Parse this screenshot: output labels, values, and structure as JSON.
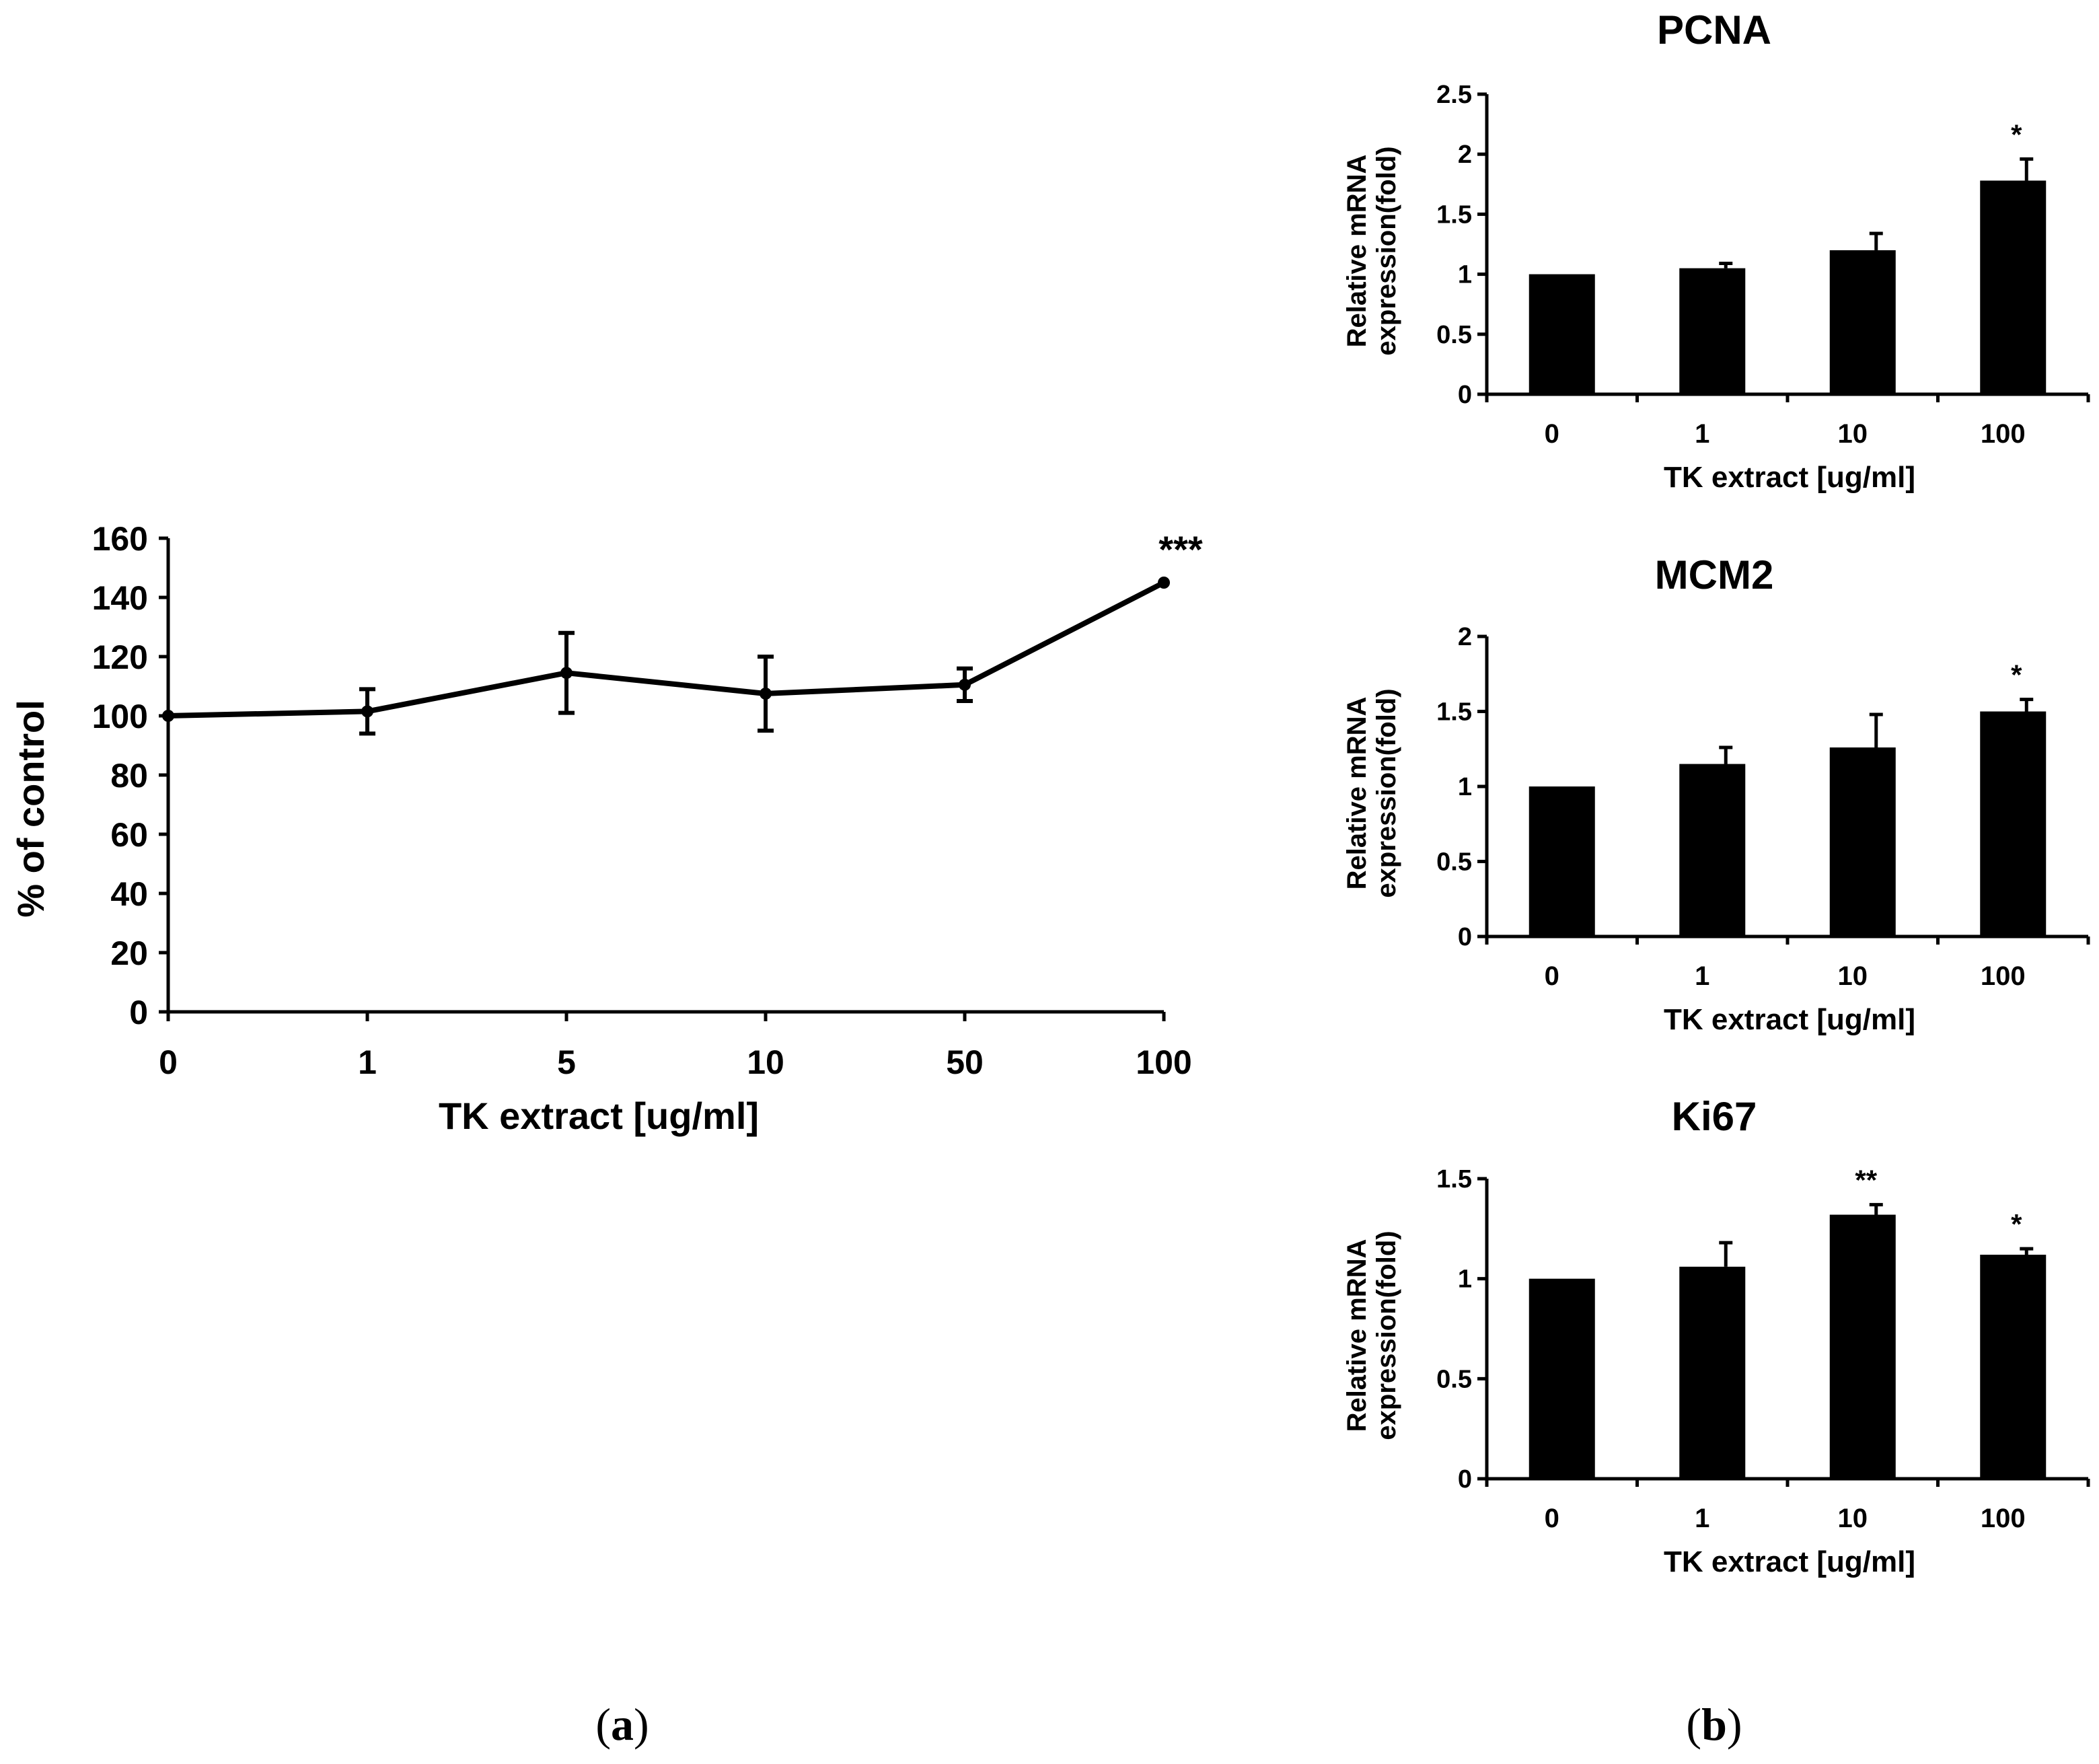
{
  "panels": [
    {
      "letter": "a"
    },
    {
      "letter": "b"
    }
  ],
  "chart_data": [
    {
      "type": "line",
      "panel": "a",
      "title": "",
      "xlabel": "TK extract [ug/ml]",
      "ylabel": "% of control",
      "categories": [
        "0",
        "1",
        "5",
        "10",
        "50",
        "100"
      ],
      "values": [
        100,
        101.5,
        114.5,
        107.5,
        110.5,
        145
      ],
      "errors": [
        0,
        7.5,
        13.5,
        12.5,
        5.5,
        0
      ],
      "annotations": [
        "",
        "",
        "",
        "",
        "",
        "***"
      ],
      "ylim": [
        0,
        160
      ],
      "yticks": [
        0,
        20,
        40,
        60,
        80,
        100,
        120,
        140,
        160
      ],
      "grid": false
    },
    {
      "type": "bar",
      "panel": "b",
      "title": "PCNA",
      "xlabel": "TK extract [ug/ml]",
      "ylabel": "Relative mRNA expression(fold)",
      "categories": [
        "0",
        "1",
        "10",
        "100"
      ],
      "values": [
        1.0,
        1.05,
        1.2,
        1.78
      ],
      "errors": [
        0,
        0.04,
        0.14,
        0.18
      ],
      "annotations": [
        "",
        "",
        "",
        "*"
      ],
      "ylim": [
        0,
        2.5
      ],
      "yticks": [
        "0",
        "0.5",
        "1",
        "1.5",
        "2",
        "2.5"
      ],
      "grid": false
    },
    {
      "type": "bar",
      "panel": "b",
      "title": "MCM2",
      "xlabel": "TK extract [ug/ml]",
      "ylabel": "Relative mRNA expression(fold)",
      "categories": [
        "0",
        "1",
        "10",
        "100"
      ],
      "values": [
        1.0,
        1.15,
        1.26,
        1.5
      ],
      "errors": [
        0,
        0.11,
        0.22,
        0.08
      ],
      "annotations": [
        "",
        "",
        "",
        "*"
      ],
      "ylim": [
        0,
        2
      ],
      "yticks": [
        "0",
        "0.5",
        "1",
        "1.5",
        "2"
      ],
      "grid": false
    },
    {
      "type": "bar",
      "panel": "b",
      "title": "Ki67",
      "xlabel": "TK extract [ug/ml]",
      "ylabel": "Relative mRNA expression(fold)",
      "categories": [
        "0",
        "1",
        "10",
        "100"
      ],
      "values": [
        1.0,
        1.06,
        1.32,
        1.12
      ],
      "errors": [
        0,
        0.12,
        0.05,
        0.03
      ],
      "annotations": [
        "",
        "",
        "**",
        "*"
      ],
      "ylim": [
        0,
        1.5
      ],
      "yticks": [
        "0",
        "0.5",
        "1",
        "1.5"
      ],
      "grid": false
    }
  ]
}
